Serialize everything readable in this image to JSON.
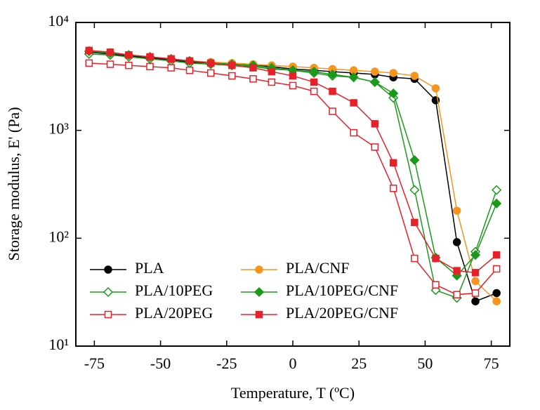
{
  "chart_data": {
    "type": "line",
    "x_label": "Temperature, T (ºC)",
    "y_label": "Storage modulus, E' (Pa)",
    "xlim": [
      -82,
      82
    ],
    "ylim": [
      10,
      10000
    ],
    "y_log": true,
    "xticks": [
      -75,
      -50,
      -25,
      0,
      25,
      50,
      75
    ],
    "yticks": [
      {
        "value": 10,
        "label": "10¹"
      },
      {
        "value": 100,
        "label": "10²"
      },
      {
        "value": 1000,
        "label": "10³"
      },
      {
        "value": 10000,
        "label": "10⁴"
      }
    ],
    "x": [
      -77,
      -69,
      -62,
      -54,
      -46,
      -39,
      -31,
      -23,
      -15,
      -8,
      0,
      8,
      15,
      23,
      31,
      38,
      46,
      54,
      62,
      69,
      77
    ],
    "series": [
      {
        "name": "PLA",
        "color": "#000000",
        "marker": "circle",
        "filled": true,
        "values": [
          5300,
          5100,
          4900,
          4700,
          4500,
          4300,
          4200,
          4100,
          4000,
          3900,
          3700,
          3600,
          3500,
          3400,
          3300,
          3100,
          3000,
          1900,
          92,
          26,
          31
        ]
      },
      {
        "name": "PLA/CNF",
        "color": "#f7941d",
        "marker": "circle",
        "filled": true,
        "values": [
          5500,
          5300,
          5000,
          4800,
          4600,
          4400,
          4300,
          4200,
          4100,
          4000,
          3900,
          3800,
          3700,
          3600,
          3500,
          3400,
          3200,
          2450,
          180,
          40,
          26
        ]
      },
      {
        "name": "PLA/10PEG",
        "color": "#1a9a1a",
        "marker": "diamond",
        "filled": false,
        "values": [
          5100,
          5000,
          4800,
          4600,
          4400,
          4200,
          4100,
          4000,
          3900,
          3700,
          3600,
          3400,
          3200,
          3100,
          2800,
          2000,
          280,
          33,
          28,
          75,
          280
        ]
      },
      {
        "name": "PLA/10PEG/CNF",
        "color": "#1a9a1a",
        "marker": "diamond",
        "filled": true,
        "values": [
          5400,
          5200,
          5000,
          4800,
          4600,
          4400,
          4200,
          4100,
          4000,
          3800,
          3600,
          3500,
          3300,
          3100,
          2800,
          2200,
          530,
          66,
          45,
          70,
          210
        ]
      },
      {
        "name": "PLA/20PEG",
        "color": "#e8202a",
        "marker": "square",
        "filled": false,
        "values": [
          4200,
          4100,
          4000,
          3900,
          3800,
          3600,
          3400,
          3200,
          3000,
          2800,
          2600,
          2300,
          1500,
          950,
          700,
          290,
          65,
          37,
          30,
          31,
          52
        ]
      },
      {
        "name": "PLA/20PEG/CNF",
        "color": "#e8202a",
        "marker": "square",
        "filled": true,
        "values": [
          5500,
          5300,
          5000,
          4800,
          4600,
          4400,
          4200,
          4000,
          3800,
          3500,
          3200,
          2800,
          2300,
          1800,
          1150,
          500,
          140,
          65,
          50,
          48,
          70
        ]
      }
    ]
  }
}
